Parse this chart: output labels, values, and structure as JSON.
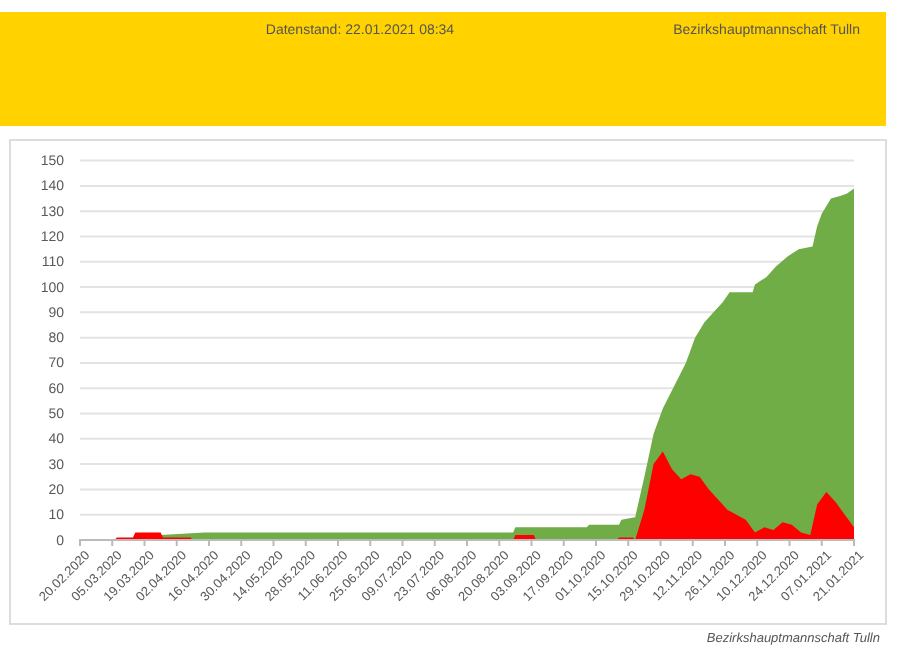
{
  "chart_data": {
    "type": "area",
    "title": "Datenstand: 22.01.2021 08:34",
    "subtitle": "Bezirkshauptmannschaft Tulln",
    "annotations": [
      "Bezirkshauptmannschaft Tulln"
    ],
    "xlim": [
      "2020-02-20",
      "2021-01-21"
    ],
    "xticks": [
      {
        "value": "2020-02-20",
        "label": "20.02.2020"
      },
      {
        "value": "2020-03-05",
        "label": "05.03.2020"
      },
      {
        "value": "2020-03-19",
        "label": "19.03.2020"
      },
      {
        "value": "2020-04-02",
        "label": "02.04.2020"
      },
      {
        "value": "2020-04-16",
        "label": "16.04.2020"
      },
      {
        "value": "2020-04-30",
        "label": "30.04.2020"
      },
      {
        "value": "2020-05-14",
        "label": "14.05.2020"
      },
      {
        "value": "2020-05-28",
        "label": "28.05.2020"
      },
      {
        "value": "2020-06-11",
        "label": "11.06.2020"
      },
      {
        "value": "2020-06-25",
        "label": "25.06.2020"
      },
      {
        "value": "2020-07-09",
        "label": "09.07.2020"
      },
      {
        "value": "2020-07-23",
        "label": "23.07.2020"
      },
      {
        "value": "2020-08-06",
        "label": "06.08.2020"
      },
      {
        "value": "2020-08-20",
        "label": "20.08.2020"
      },
      {
        "value": "2020-09-03",
        "label": "03.09.2020"
      },
      {
        "value": "2020-09-17",
        "label": "17.09.2020"
      },
      {
        "value": "2020-10-01",
        "label": "01.10.2020"
      },
      {
        "value": "2020-10-15",
        "label": "15.10.2020"
      },
      {
        "value": "2020-10-29",
        "label": "29.10.2020"
      },
      {
        "value": "2020-11-12",
        "label": "12.11.2020"
      },
      {
        "value": "2020-11-26",
        "label": "26.11.2020"
      },
      {
        "value": "2020-12-10",
        "label": "10.12.2020"
      },
      {
        "value": "2020-12-24",
        "label": "24.12.2020"
      },
      {
        "value": "2021-01-07",
        "label": "07.01.2021"
      },
      {
        "value": "2021-01-21",
        "label": "21.01.2021"
      }
    ],
    "ylim": [
      0,
      150
    ],
    "yticks": [
      0,
      10,
      20,
      30,
      40,
      50,
      60,
      70,
      80,
      90,
      100,
      110,
      120,
      130,
      140,
      150
    ],
    "grid": "y",
    "series": [
      {
        "color": "#70ad47",
        "x": [
          "2020-02-20",
          "2020-03-25",
          "2020-03-26",
          "2020-04-14",
          "2020-08-26",
          "2020-08-27",
          "2020-09-27",
          "2020-09-28",
          "2020-10-11",
          "2020-10-12",
          "2020-10-18",
          "2020-10-22",
          "2020-10-26",
          "2020-10-30",
          "2020-11-04",
          "2020-11-09",
          "2020-11-13",
          "2020-11-17",
          "2020-11-21",
          "2020-11-25",
          "2020-11-28",
          "2020-12-08",
          "2020-12-09",
          "2020-12-14",
          "2020-12-18",
          "2020-12-23",
          "2020-12-28",
          "2021-01-03",
          "2021-01-05",
          "2021-01-07",
          "2021-01-11",
          "2021-01-15",
          "2021-01-18",
          "2021-01-21"
        ],
        "values": [
          0,
          0,
          2,
          3,
          3,
          5,
          5,
          6,
          6,
          8,
          9,
          25,
          42,
          52,
          61,
          70,
          80,
          86,
          90,
          94,
          98,
          98,
          101,
          104,
          108,
          112,
          115,
          116,
          124,
          129,
          135,
          136,
          137,
          139
        ]
      },
      {
        "color": "#ff0000",
        "x": [
          "2020-02-20",
          "2020-03-06",
          "2020-03-07",
          "2020-03-14",
          "2020-03-15",
          "2020-03-26",
          "2020-03-27",
          "2020-04-08",
          "2020-04-09",
          "2020-08-26",
          "2020-08-27",
          "2020-09-04",
          "2020-09-05",
          "2020-10-10",
          "2020-10-11",
          "2020-10-17",
          "2020-10-18",
          "2020-10-22",
          "2020-10-26",
          "2020-10-30",
          "2020-11-03",
          "2020-11-07",
          "2020-11-11",
          "2020-11-15",
          "2020-11-19",
          "2020-11-23",
          "2020-11-27",
          "2020-12-01",
          "2020-12-05",
          "2020-12-09",
          "2020-12-13",
          "2020-12-17",
          "2020-12-21",
          "2020-12-25",
          "2020-12-29",
          "2021-01-02",
          "2021-01-05",
          "2021-01-09",
          "2021-01-13",
          "2021-01-17",
          "2021-01-21"
        ],
        "values": [
          0,
          0,
          1,
          1,
          3,
          3,
          1,
          1,
          0,
          0,
          2,
          2,
          0,
          0,
          1,
          1,
          0,
          12,
          30,
          35,
          28,
          24,
          26,
          25,
          20,
          16,
          12,
          10,
          8,
          3,
          5,
          4,
          7,
          6,
          3,
          2,
          14,
          19,
          15,
          10,
          5
        ]
      }
    ]
  }
}
